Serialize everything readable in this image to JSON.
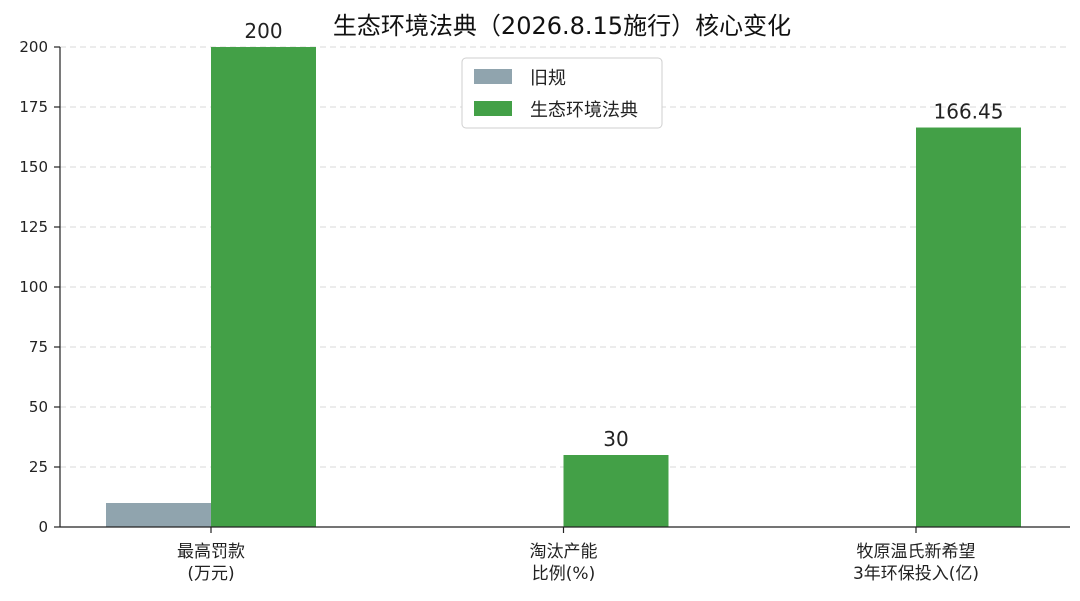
{
  "chart_data": {
    "type": "bar",
    "title": "生态环境法典（2026.8.15施行）核心变化",
    "categories": [
      [
        "最高罚款",
        "(万元)"
      ],
      [
        "淘汰产能",
        "比例(%)"
      ],
      [
        "牧原温氏新希望",
        "3年环保投入(亿)"
      ]
    ],
    "series": [
      {
        "name": "旧规",
        "color": "#90a4ae",
        "values": [
          10,
          0,
          0
        ],
        "labels": [
          "",
          "",
          ""
        ]
      },
      {
        "name": "生态环境法典",
        "color": "#43a047",
        "values": [
          200,
          30,
          166.45
        ],
        "labels": [
          "200",
          "30",
          "166.45"
        ]
      }
    ],
    "ylim": [
      0,
      200
    ],
    "yticks": [
      0,
      25,
      50,
      75,
      100,
      125,
      150,
      175,
      200
    ],
    "grid": true,
    "legend_position": "top-center"
  }
}
